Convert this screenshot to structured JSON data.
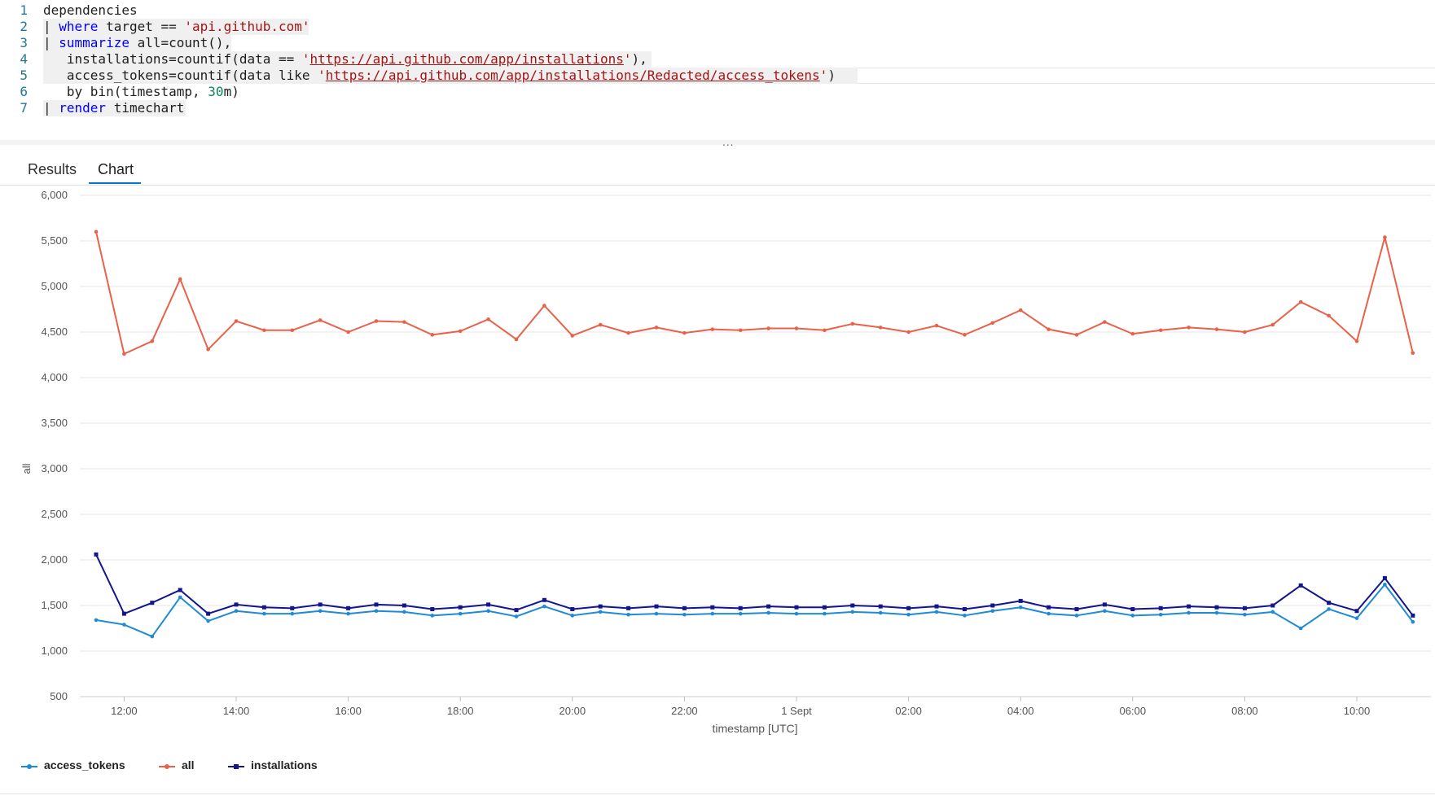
{
  "editor": {
    "line_numbers": [
      "1",
      "2",
      "3",
      "4",
      "5",
      "6",
      "7"
    ],
    "lines": [
      [
        {
          "t": "dependencies",
          "c": ""
        }
      ],
      [
        {
          "t": "| ",
          "c": ""
        },
        {
          "t": "where",
          "c": "kw"
        },
        {
          "t": " target == ",
          "c": ""
        },
        {
          "t": "'api.github.com'",
          "c": "str"
        }
      ],
      [
        {
          "t": "| ",
          "c": ""
        },
        {
          "t": "summarize",
          "c": "kw"
        },
        {
          "t": " all=count(),",
          "c": ""
        }
      ],
      [
        {
          "t": "   installations=countif(data == ",
          "c": ""
        },
        {
          "t": "'",
          "c": "str"
        },
        {
          "t": "https://api.github.com/app/installations",
          "c": "str url"
        },
        {
          "t": "'",
          "c": "str"
        },
        {
          "t": "),",
          "c": ""
        }
      ],
      [
        {
          "t": "   access_tokens=countif(data like ",
          "c": ""
        },
        {
          "t": "'",
          "c": "str"
        },
        {
          "t": "https://api.github.com/app/installations/Redacted/access_tokens",
          "c": "str url"
        },
        {
          "t": "'",
          "c": "str"
        },
        {
          "t": ")",
          "c": ""
        }
      ],
      [
        {
          "t": "   by bin(timestamp, ",
          "c": ""
        },
        {
          "t": "30",
          "c": "num"
        },
        {
          "t": "m)",
          "c": ""
        }
      ],
      [
        {
          "t": "| ",
          "c": ""
        },
        {
          "t": "render",
          "c": "kw"
        },
        {
          "t": " timechart",
          "c": ""
        }
      ]
    ]
  },
  "splitter": {
    "grip": "..."
  },
  "tabs": [
    {
      "label": "Results",
      "active": false
    },
    {
      "label": "Chart",
      "active": true
    }
  ],
  "chart_data": {
    "type": "line",
    "xlabel": "timestamp [UTC]",
    "ylabel": "all",
    "ylim": [
      500,
      6000
    ],
    "yticks": [
      "6,000",
      "5,500",
      "5,000",
      "4,500",
      "4,000",
      "3,500",
      "3,000",
      "2,500",
      "2,000",
      "1,500",
      "1,000",
      "500"
    ],
    "xtick_labels": [
      "12:00",
      "14:00",
      "16:00",
      "18:00",
      "20:00",
      "22:00",
      "1 Sept",
      "02:00",
      "04:00",
      "06:00",
      "08:00",
      "10:00"
    ],
    "x": [
      "11:30",
      "12:00",
      "12:30",
      "13:00",
      "13:30",
      "14:00",
      "14:30",
      "15:00",
      "15:30",
      "16:00",
      "16:30",
      "17:00",
      "17:30",
      "18:00",
      "18:30",
      "19:00",
      "19:30",
      "20:00",
      "20:30",
      "21:00",
      "21:30",
      "22:00",
      "22:30",
      "23:00",
      "23:30",
      "00:00",
      "00:30",
      "01:00",
      "01:30",
      "02:00",
      "02:30",
      "03:00",
      "03:30",
      "04:00",
      "04:30",
      "05:00",
      "05:30",
      "06:00",
      "06:30",
      "07:00",
      "07:30",
      "08:00",
      "08:30",
      "09:00",
      "09:30",
      "10:00",
      "10:30",
      "11:00"
    ],
    "grid": true,
    "legend_position": "bottom-left",
    "series": [
      {
        "name": "access_tokens",
        "color": "#1f8ad6",
        "marker": "circle",
        "values": [
          1340,
          1290,
          1160,
          1590,
          1330,
          1440,
          1410,
          1410,
          1440,
          1410,
          1440,
          1430,
          1390,
          1410,
          1440,
          1380,
          1490,
          1390,
          1430,
          1400,
          1410,
          1400,
          1410,
          1410,
          1420,
          1410,
          1410,
          1430,
          1420,
          1400,
          1430,
          1390,
          1440,
          1480,
          1410,
          1390,
          1440,
          1390,
          1400,
          1420,
          1420,
          1400,
          1430,
          1250,
          1460,
          1360,
          1730,
          1320
        ]
      },
      {
        "name": "all",
        "color": "#e8624a",
        "marker": "circle",
        "values": [
          5600,
          4260,
          4400,
          5080,
          4310,
          4620,
          4520,
          4520,
          4630,
          4500,
          4620,
          4610,
          4470,
          4510,
          4640,
          4420,
          4790,
          4460,
          4580,
          4490,
          4550,
          4490,
          4530,
          4520,
          4540,
          4540,
          4520,
          4590,
          4550,
          4500,
          4570,
          4470,
          4600,
          4740,
          4530,
          4470,
          4610,
          4480,
          4520,
          4550,
          4530,
          4500,
          4580,
          4830,
          4680,
          4400,
          5540,
          4270
        ]
      },
      {
        "name": "installations",
        "color": "#14148c",
        "marker": "square",
        "values": [
          2060,
          1410,
          1530,
          1670,
          1410,
          1510,
          1480,
          1470,
          1510,
          1470,
          1510,
          1500,
          1460,
          1480,
          1510,
          1450,
          1560,
          1460,
          1490,
          1470,
          1490,
          1470,
          1480,
          1470,
          1490,
          1480,
          1480,
          1500,
          1490,
          1470,
          1490,
          1460,
          1500,
          1550,
          1480,
          1460,
          1510,
          1460,
          1470,
          1490,
          1480,
          1470,
          1500,
          1720,
          1530,
          1440,
          1800,
          1390
        ]
      }
    ]
  }
}
